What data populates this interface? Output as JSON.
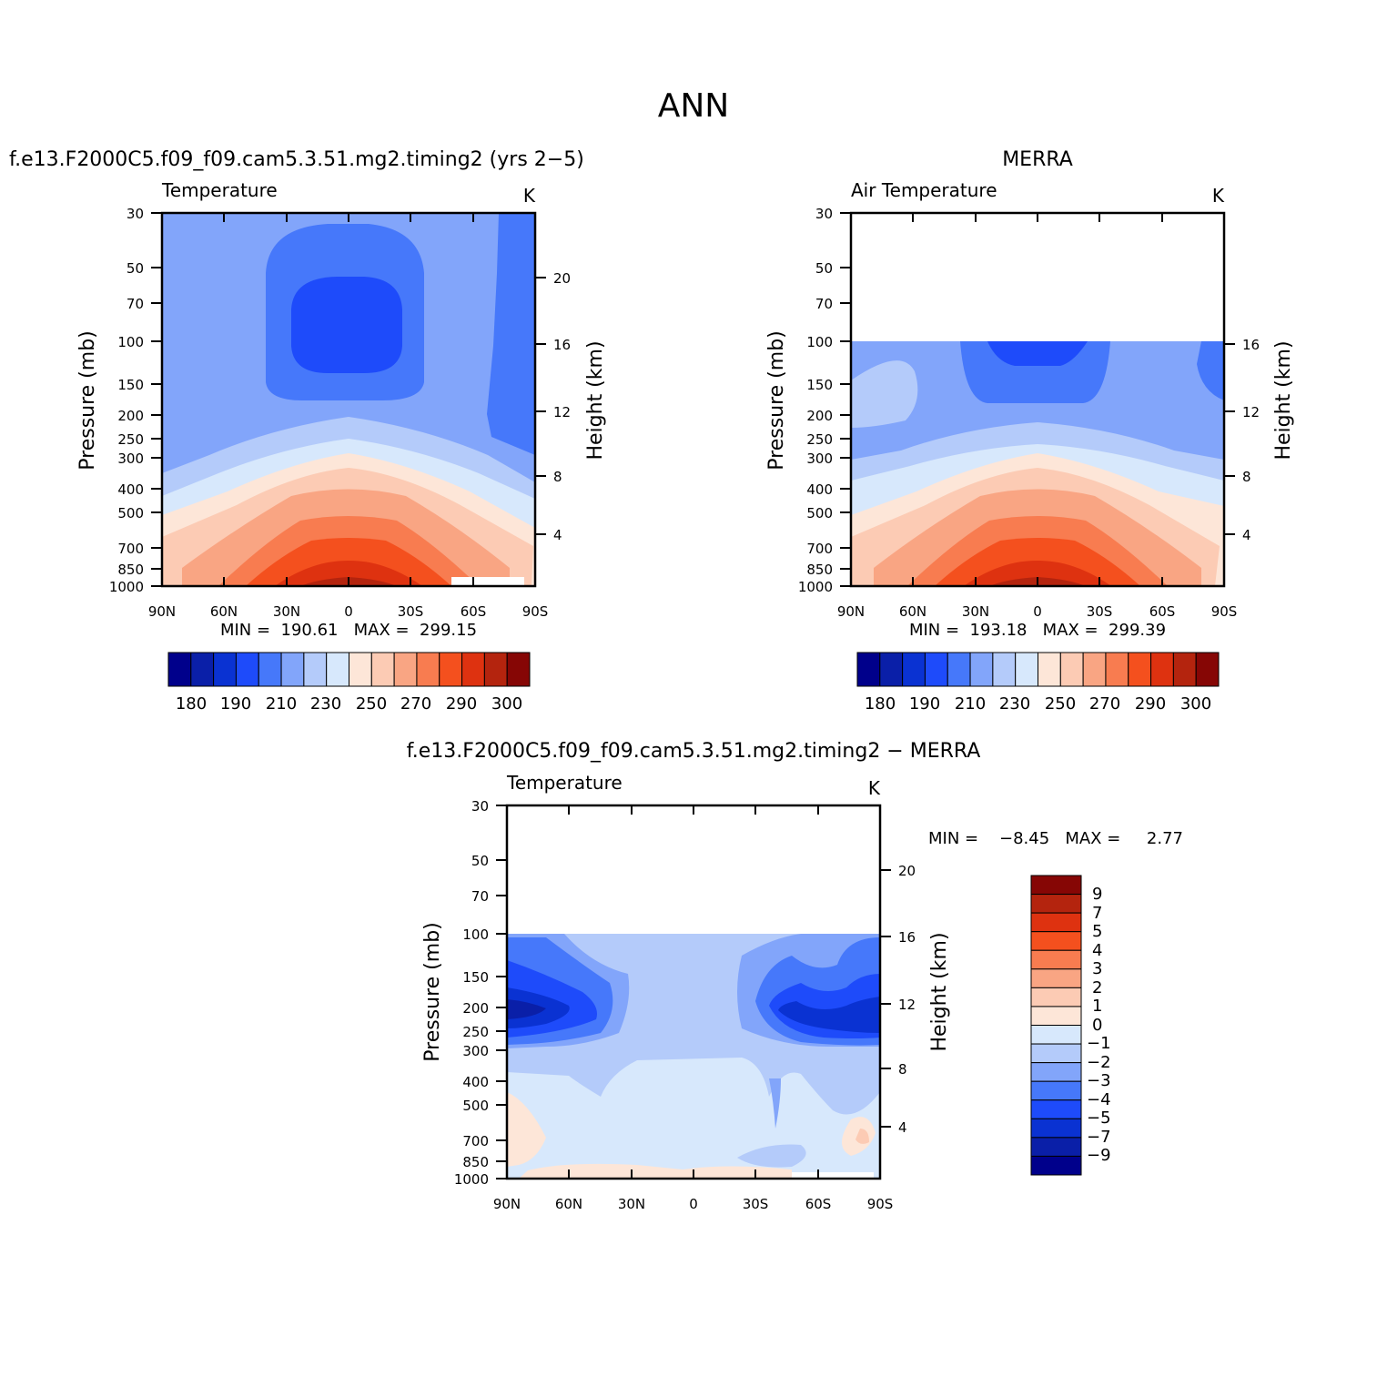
{
  "title": "ANN",
  "chart_data": [
    {
      "type": "heatmap",
      "id": "model",
      "header": "f.e13.F2000C5.f09_f09.cam5.3.51.mg2.timing2 (yrs 2−5)",
      "left_label": "Temperature",
      "units": "K",
      "ylabel": "Pressure (mb)",
      "y2label": "Height (km)",
      "xticks": [
        "90N",
        "60N",
        "30N",
        "0",
        "30S",
        "60S",
        "90S"
      ],
      "yticks": [
        "30",
        "50",
        "70",
        "100",
        "150",
        "200",
        "250",
        "300",
        "400",
        "500",
        "700",
        "850",
        "1000"
      ],
      "y2ticks": [
        "20",
        "16",
        "12",
        "8",
        "4"
      ],
      "data_top_mb": 30,
      "stats": "MIN =  190.61   MAX =  299.15",
      "min": 190.61,
      "max": 299.15,
      "colorbar_labels": [
        "180",
        "190",
        "210",
        "230",
        "250",
        "270",
        "290",
        "300"
      ]
    },
    {
      "type": "heatmap",
      "id": "obs",
      "header": "MERRA",
      "left_label": "Air Temperature",
      "units": "K",
      "ylabel": "Pressure (mb)",
      "y2label": "Height (km)",
      "xticks": [
        "90N",
        "60N",
        "30N",
        "0",
        "30S",
        "60S",
        "90S"
      ],
      "yticks": [
        "30",
        "50",
        "70",
        "100",
        "150",
        "200",
        "250",
        "300",
        "400",
        "500",
        "700",
        "850",
        "1000"
      ],
      "y2ticks": [
        "16",
        "12",
        "8",
        "4"
      ],
      "data_top_mb": 100,
      "stats": "MIN =  193.18   MAX =  299.39",
      "min": 193.18,
      "max": 299.39,
      "colorbar_labels": [
        "180",
        "190",
        "210",
        "230",
        "250",
        "270",
        "290",
        "300"
      ]
    },
    {
      "type": "heatmap",
      "id": "diff",
      "header": "f.e13.F2000C5.f09_f09.cam5.3.51.mg2.timing2 − MERRA",
      "left_label": "Temperature",
      "units": "K",
      "ylabel": "Pressure (mb)",
      "y2label": "Height (km)",
      "xticks": [
        "90N",
        "60N",
        "30N",
        "0",
        "30S",
        "60S",
        "90S"
      ],
      "yticks": [
        "30",
        "50",
        "70",
        "100",
        "150",
        "200",
        "250",
        "300",
        "400",
        "500",
        "700",
        "850",
        "1000"
      ],
      "y2ticks": [
        "20",
        "16",
        "12",
        "8",
        "4"
      ],
      "data_top_mb": 100,
      "stats": "MIN =    −8.45   MAX =     2.77",
      "min": -8.45,
      "max": 2.77,
      "colorbar_labels": [
        "9",
        "7",
        "5",
        "4",
        "3",
        "2",
        "1",
        "0",
        "−1",
        "−2",
        "−3",
        "−4",
        "−5",
        "−7",
        "−9"
      ]
    }
  ],
  "palette": [
    "#00008b",
    "#0a1fa8",
    "#0a32d2",
    "#1e4bfa",
    "#4678fa",
    "#82a5fa",
    "#b4cbfa",
    "#d7e8fc",
    "#fde6d8",
    "#fccbb4",
    "#f9a583",
    "#f87c50",
    "#f4501e",
    "#de3210",
    "#b4240e",
    "#860605"
  ]
}
